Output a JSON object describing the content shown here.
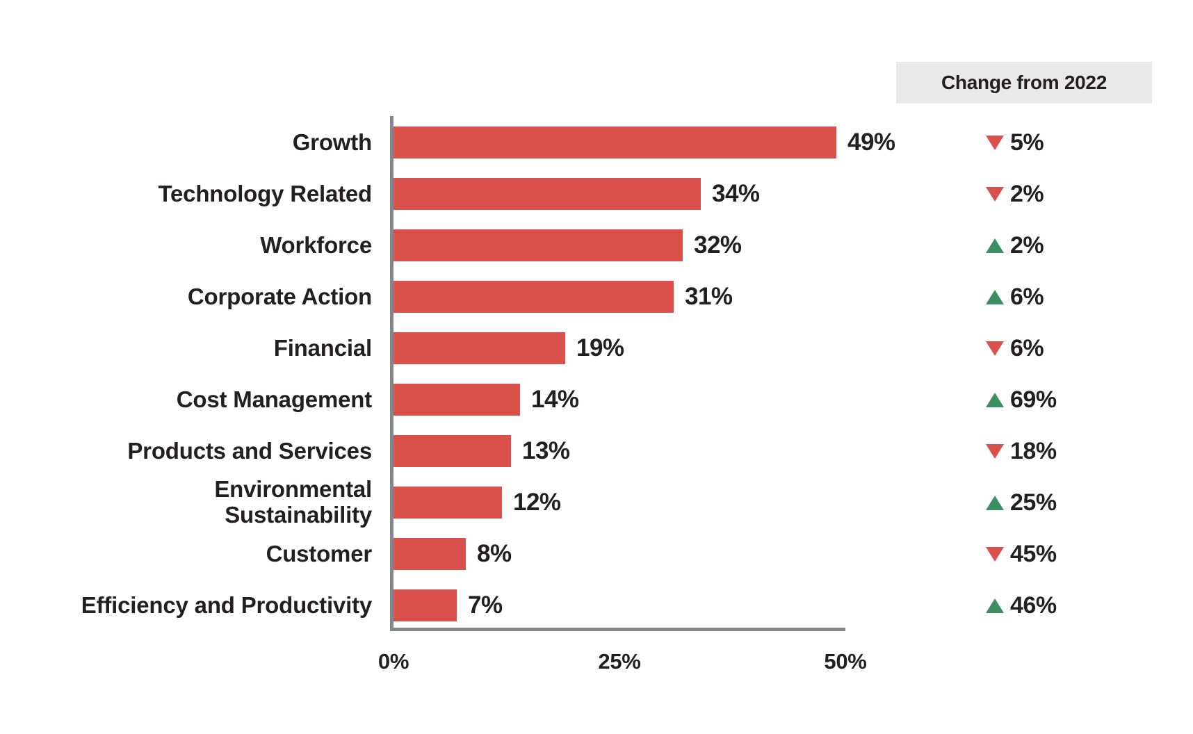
{
  "chart_data": {
    "type": "bar",
    "orientation": "horizontal",
    "title": "",
    "xlabel": "",
    "ylabel": "",
    "categories": [
      "Growth",
      "Technology Related",
      "Workforce",
      "Corporate Action",
      "Financial",
      "Cost Management",
      "Products and Services",
      "Environmental\nSustainability",
      "Customer",
      "Efficiency and Productivity"
    ],
    "values": [
      49,
      34,
      32,
      31,
      19,
      14,
      13,
      12,
      8,
      7
    ],
    "value_labels": [
      "49%",
      "34%",
      "32%",
      "31%",
      "19%",
      "14%",
      "13%",
      "12%",
      "8%",
      "7%"
    ],
    "changes": [
      {
        "direction": "down",
        "label": "5%"
      },
      {
        "direction": "down",
        "label": "2%"
      },
      {
        "direction": "up",
        "label": "2%"
      },
      {
        "direction": "up",
        "label": "6%"
      },
      {
        "direction": "down",
        "label": "6%"
      },
      {
        "direction": "up",
        "label": "69%"
      },
      {
        "direction": "down",
        "label": "18%"
      },
      {
        "direction": "up",
        "label": "25%"
      },
      {
        "direction": "down",
        "label": "45%"
      },
      {
        "direction": "up",
        "label": "46%"
      }
    ],
    "change_column_header": "Change from 2022",
    "x_ticks": [
      "0%",
      "25%",
      "50%"
    ],
    "xlim": [
      0,
      50
    ],
    "grid": false,
    "legend": false,
    "colors": {
      "bar": "#d9514a",
      "increase": "#3c8f60",
      "decrease": "#d9514a",
      "axis": "#85868a",
      "text": "#231f20",
      "header_bg": "#e9e9e9"
    }
  }
}
